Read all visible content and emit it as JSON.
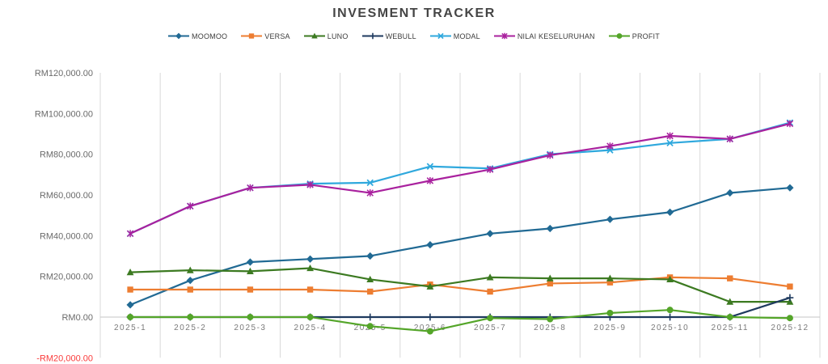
{
  "title": "INVESMENT TRACKER",
  "title_color": "#454545",
  "chart_data": {
    "type": "line",
    "title": "INVESMENT TRACKER",
    "legend_position": "top",
    "grid": {
      "vertical": true,
      "horizontal": false,
      "color": "#d9d9d9"
    },
    "axis_line_color": "#c4c4c4",
    "categories": [
      "2025-1",
      "2025-2",
      "2025-3",
      "2025-4",
      "2025-5",
      "2025-6",
      "2025-7",
      "2025-8",
      "2025-9",
      "2025-10",
      "2025-11",
      "2025-12"
    ],
    "x_axis": {
      "label_color": "#7a7a7a"
    },
    "y_axis": {
      "min": -20000,
      "max": 120000,
      "step": 20000,
      "ticks": [
        {
          "value": 120000,
          "label": "RM120,000.00",
          "color": "#6a6a6a"
        },
        {
          "value": 100000,
          "label": "RM100,000.00",
          "color": "#6a6a6a"
        },
        {
          "value": 80000,
          "label": "RM80,000.00",
          "color": "#6a6a6a"
        },
        {
          "value": 60000,
          "label": "RM60,000.00",
          "color": "#6a6a6a"
        },
        {
          "value": 40000,
          "label": "RM40,000.00",
          "color": "#6a6a6a"
        },
        {
          "value": 20000,
          "label": "RM20,000.00",
          "color": "#6a6a6a"
        },
        {
          "value": 0,
          "label": "RM0.00",
          "color": "#6a6a6a"
        },
        {
          "value": -20000,
          "label": "-RM20,000.00",
          "color": "#fa3b3b"
        }
      ]
    },
    "series": [
      {
        "name": "MOOMOO",
        "color": "#216a94",
        "marker": "diamond",
        "values": [
          6000,
          18000,
          27000,
          28500,
          30000,
          35500,
          41000,
          43500,
          48000,
          51500,
          61000,
          63500
        ]
      },
      {
        "name": "VERSA",
        "color": "#ed7d31",
        "marker": "square",
        "values": [
          13500,
          13500,
          13500,
          13500,
          12500,
          16000,
          12500,
          16500,
          17000,
          19500,
          19000,
          15000
        ]
      },
      {
        "name": "LUNO",
        "color": "#3c7a21",
        "marker": "triangle",
        "values": [
          22000,
          23000,
          22500,
          24000,
          18500,
          15000,
          19500,
          19000,
          19000,
          18500,
          7500,
          7500
        ]
      },
      {
        "name": "WEBULL",
        "color": "#1e3a5f",
        "marker": "plus",
        "values": [
          0,
          0,
          0,
          0,
          0,
          0,
          0,
          0,
          0,
          0,
          0,
          9500
        ]
      },
      {
        "name": "MODAL",
        "color": "#2fa8dd",
        "marker": "x",
        "values": [
          41000,
          54500,
          63500,
          65500,
          66000,
          74000,
          73000,
          80000,
          82000,
          85500,
          87500,
          95500
        ]
      },
      {
        "name": "NILAI KESELURUHAN",
        "color": "#a9219e",
        "marker": "asterisk",
        "values": [
          41000,
          54500,
          63500,
          65000,
          61000,
          67000,
          72500,
          79500,
          84000,
          89000,
          87500,
          95000
        ]
      },
      {
        "name": "PROFIT",
        "color": "#54a529",
        "marker": "circle",
        "values": [
          0,
          0,
          0,
          0,
          -4500,
          -7000,
          -500,
          -1000,
          2000,
          3500,
          0,
          -500
        ]
      }
    ]
  }
}
